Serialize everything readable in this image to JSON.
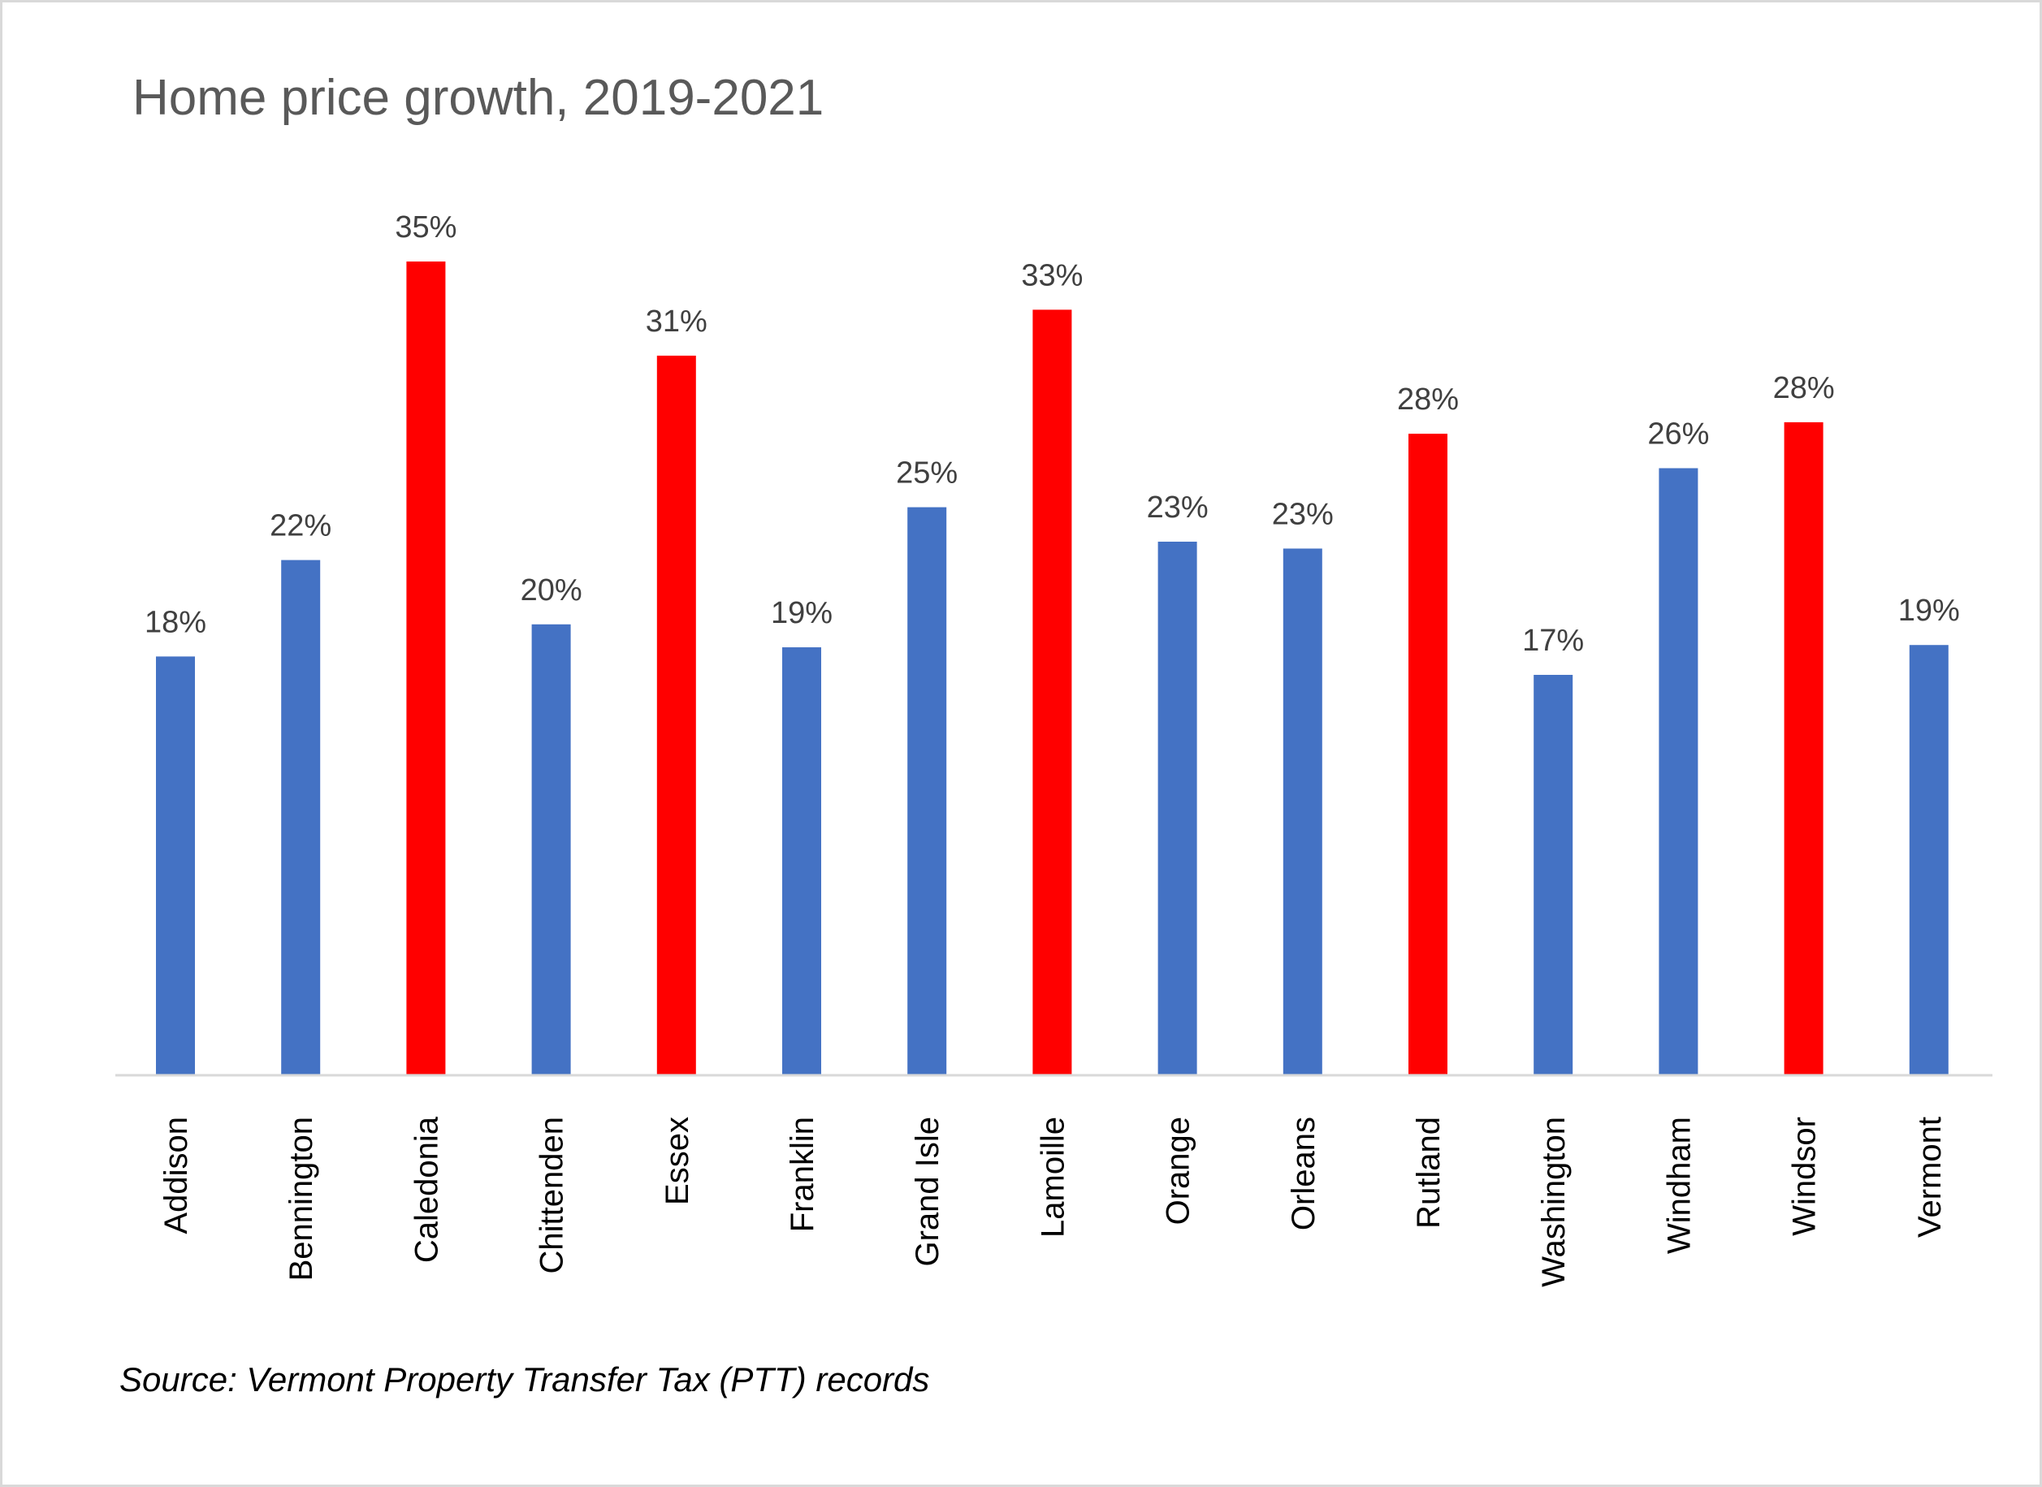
{
  "chart_data": {
    "type": "bar",
    "title": "Home price growth, 2019-2021",
    "source": "Source: Vermont Property Transfer Tax (PTT) records",
    "categories": [
      "Addison",
      "Bennington",
      "Caledonia",
      "Chittenden",
      "Essex",
      "Franklin",
      "Grand Isle",
      "Lamoille",
      "Orange",
      "Orleans",
      "Rutland",
      "Washington",
      "Windham",
      "Windsor",
      "Vermont"
    ],
    "values": [
      18.2,
      22.4,
      35.4,
      19.6,
      31.3,
      18.6,
      24.7,
      33.3,
      23.2,
      22.9,
      27.9,
      17.4,
      26.4,
      28.4,
      18.7
    ],
    "data_labels": [
      "18%",
      "22%",
      "35%",
      "20%",
      "31%",
      "19%",
      "25%",
      "33%",
      "23%",
      "23%",
      "28%",
      "17%",
      "26%",
      "28%",
      "19%"
    ],
    "highlighted": [
      false,
      false,
      true,
      false,
      true,
      false,
      false,
      true,
      false,
      false,
      true,
      false,
      false,
      true,
      false
    ],
    "colors": {
      "default": "#4472C4",
      "highlight": "#FF0000",
      "axis": "#D9D9D9"
    },
    "ylim": [
      0,
      35.4
    ],
    "grid": false,
    "legend": "none",
    "xlabel": "",
    "ylabel": ""
  }
}
